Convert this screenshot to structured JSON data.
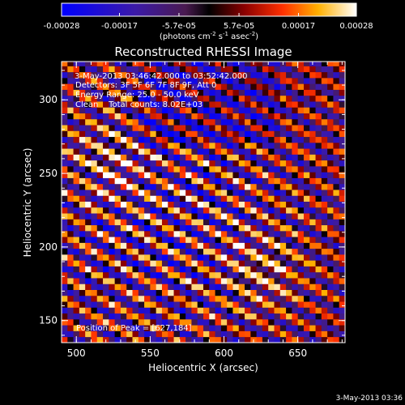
{
  "colorbar": {
    "ticks": [
      "-0.00028",
      "-0.00017",
      "-5.7e-05",
      "5.7e-05",
      "0.00017",
      "0.00028"
    ],
    "unit_parts": [
      "(photons cm",
      "-2",
      " s",
      "-1",
      " asec",
      "-2",
      ")"
    ]
  },
  "chart_data": {
    "type": "heatmap",
    "title": "Reconstructed RHESSI Image",
    "xlabel": "Heliocentric X (arcsec)",
    "ylabel": "Heliocentric Y (arcsec)",
    "xlim": [
      490,
      682
    ],
    "ylim": [
      135,
      326
    ],
    "xticks": [
      "500",
      "550",
      "600",
      "650"
    ],
    "yticks": [
      "150",
      "200",
      "250",
      "300"
    ],
    "colorbar_range": [
      -0.00028,
      0.00028
    ],
    "colormap": "blue-purple-red-orange-yellow-white",
    "pattern": "diagonal fringes running from upper-left to lower-right",
    "peak_position": [
      627,
      184
    ],
    "annotations": [
      "3-May-2013 03:46:42.000 to 03:52:42.000",
      "Detectors: 3F 5F 6F 7F 8F 9F, Att 0",
      "Energy Range: 25.0 - 50.0 keV",
      "Clean    Total counts: 8.02E+03",
      "Position of Peak = [627,184]"
    ]
  },
  "footer": {
    "timestamp": "3-May-2013 03:36"
  }
}
